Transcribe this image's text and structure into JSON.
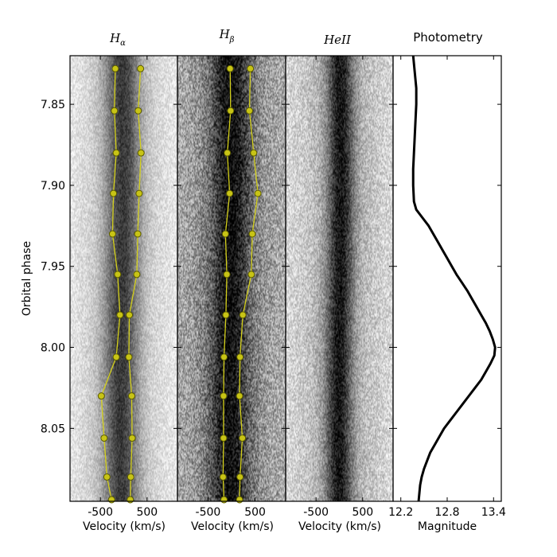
{
  "chart_data": {
    "type": "line",
    "ylabel": "Orbital phase",
    "ylim": [
      7.82,
      8.095
    ],
    "yticks": [
      "7.85",
      "7.90",
      "7.95",
      "8.00",
      "8.05"
    ],
    "panels": [
      {
        "id": "halpha",
        "title_main": "H",
        "title_sub": "α",
        "xlabel": "Velocity (km/s)",
        "xlim": [
          -1150,
          1150
        ],
        "xticks": [
          "-500",
          "500"
        ],
        "trailed_spectrum": {
          "center_velocity": -50,
          "noise_level": 0.15,
          "dark_width": 260,
          "wing_width": 750,
          "depth": 0.55,
          "base": 0.97
        },
        "series": [
          {
            "name": "blue peak",
            "phase": [
              7.828,
              7.854,
              7.88,
              7.905,
              7.93,
              7.955,
              7.98,
              8.006,
              8.03,
              8.056,
              8.08,
              8.094
            ],
            "velocity": [
              -180,
              -200,
              -160,
              -220,
              -240,
              -130,
              -80,
              -160,
              -480,
              -420,
              -360,
              -260
            ]
          },
          {
            "name": "red peak",
            "phase": [
              7.828,
              7.854,
              7.88,
              7.905,
              7.93,
              7.955,
              7.98,
              8.006,
              8.03,
              8.056,
              8.08,
              8.094
            ],
            "velocity": [
              360,
              310,
              370,
              330,
              300,
              280,
              120,
              110,
              170,
              180,
              150,
              140
            ]
          }
        ]
      },
      {
        "id": "hbeta",
        "title_main": "H",
        "title_sub": "β",
        "xlabel": "Velocity (km/s)",
        "xlim": [
          -1150,
          1150
        ],
        "xticks": [
          "-500",
          "500"
        ],
        "trailed_spectrum": {
          "center_velocity": -40,
          "noise_level": 0.32,
          "dark_width": 280,
          "wing_width": 700,
          "depth": 0.5,
          "base": 0.72
        },
        "series": [
          {
            "name": "blue peak",
            "phase": [
              7.828,
              7.854,
              7.88,
              7.905,
              7.93,
              7.955,
              7.98,
              8.006,
              8.03,
              8.056,
              8.08,
              8.094
            ],
            "velocity": [
              -30,
              -20,
              -90,
              -40,
              -130,
              -100,
              -120,
              -160,
              -170,
              -170,
              -180,
              -160
            ]
          },
          {
            "name": "red peak",
            "phase": [
              7.828,
              7.854,
              7.88,
              7.905,
              7.93,
              7.955,
              7.98,
              8.006,
              8.03,
              8.056,
              8.08,
              8.094
            ],
            "velocity": [
              400,
              380,
              470,
              560,
              440,
              420,
              240,
              180,
              170,
              230,
              180,
              170
            ]
          }
        ]
      },
      {
        "id": "heii",
        "title_main": "HeII",
        "title_sub": "",
        "xlabel": "Velocity (km/s)",
        "xlim": [
          -1150,
          1150
        ],
        "xticks": [
          "-500",
          "500"
        ],
        "trailed_spectrum": {
          "center_velocity": 0,
          "noise_level": 0.22,
          "dark_width": 200,
          "wing_width": 600,
          "depth": 0.6,
          "base": 0.88
        }
      },
      {
        "id": "photometry",
        "title_main": "Photometry",
        "title_sub": "",
        "xlabel": "Magnitude",
        "xlim": [
          12.1,
          13.5
        ],
        "xticks": [
          "12.2",
          "12.8",
          "13.4"
        ],
        "series": [
          {
            "name": "light curve",
            "phase": [
              7.82,
              7.83,
              7.84,
              7.85,
              7.86,
              7.87,
              7.88,
              7.89,
              7.9,
              7.91,
              7.915,
              7.92,
              7.925,
              7.93,
              7.935,
              7.94,
              7.945,
              7.95,
              7.955,
              7.96,
              7.965,
              7.97,
              7.975,
              7.98,
              7.985,
              7.99,
              7.995,
              8.0,
              8.005,
              8.01,
              8.015,
              8.02,
              8.025,
              8.03,
              8.035,
              8.04,
              8.045,
              8.05,
              8.055,
              8.06,
              8.065,
              8.07,
              8.075,
              8.08,
              8.085,
              8.09,
              8.095
            ],
            "magnitude": [
              12.36,
              12.38,
              12.4,
              12.4,
              12.39,
              12.38,
              12.37,
              12.36,
              12.36,
              12.37,
              12.4,
              12.48,
              12.56,
              12.62,
              12.68,
              12.74,
              12.8,
              12.86,
              12.92,
              12.99,
              13.06,
              13.12,
              13.18,
              13.24,
              13.3,
              13.35,
              13.39,
              13.42,
              13.41,
              13.36,
              13.3,
              13.24,
              13.16,
              13.08,
              13.0,
              12.92,
              12.84,
              12.76,
              12.7,
              12.64,
              12.58,
              12.54,
              12.5,
              12.47,
              12.45,
              12.44,
              12.43
            ]
          }
        ]
      }
    ]
  }
}
